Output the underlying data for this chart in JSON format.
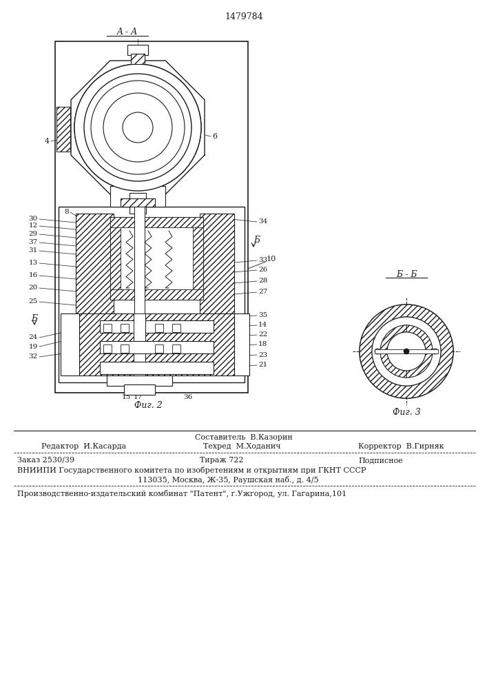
{
  "patent_number": "1479784",
  "fig2_label": "Фиг. 2",
  "fig3_label": "Фиг. 3",
  "section_aa": "A - A",
  "section_bb": "Б - Б",
  "footer": {
    "sestavitel": "Составитель  В.Казорин",
    "redaktor": "Редактор  И.Касарда",
    "tehred": "Техред  М.Ходанич",
    "korrektor": "Корректор  В.Гирняк",
    "zakaz": "Заказ 2530/39",
    "tirazh": "Тираж 722",
    "podpisnoe": "Подписное",
    "vniipи": "ВНИИПИ Государственного комитета по изобретениям и открытиям при ГКНТ СССР",
    "address": "113035, Москва, Ж-35, Раушская наб., д. 4/5",
    "publisher": "Производственно-издательский комбинат \"Патент\", г.Ужгород, ул. Гагарина,101"
  },
  "bg_color": "#ffffff",
  "line_color": "#1a1a1a"
}
